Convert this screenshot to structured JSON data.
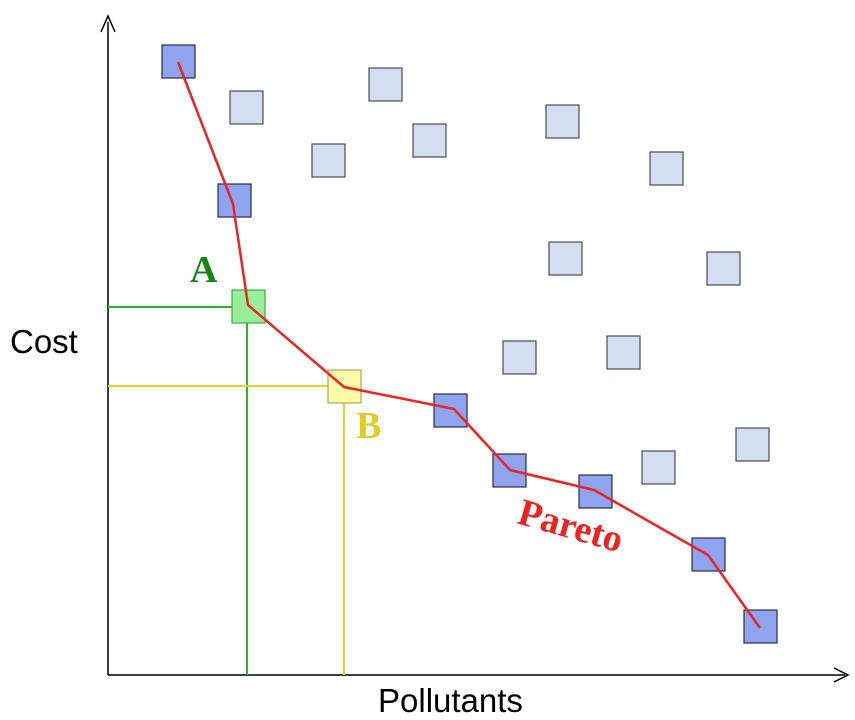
{
  "labels": {
    "y_axis": "Cost",
    "x_axis": "Pollutants",
    "point_a": "A",
    "point_b": "B",
    "front": "Pareto"
  },
  "colors": {
    "axis": "#000000",
    "dominated_fill": "#d3dff0",
    "dominated_stroke": "#4a4a58",
    "pareto_fill": "#8ea4ee",
    "pareto_stroke": "#2d2d40",
    "front_line": "#ee2222",
    "point_a_fill": "#99ee99",
    "point_a_stroke": "#44aa44",
    "point_a_guides": "#22bb22",
    "point_a_text": "#118811",
    "point_b_fill": "#fbfba8",
    "point_b_stroke": "#a8a860",
    "point_b_guides": "#e6d622",
    "point_b_text": "#e0cc22",
    "front_text": "#ee2222"
  }
}
